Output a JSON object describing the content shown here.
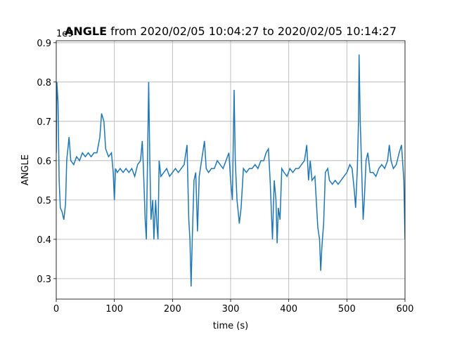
{
  "chart_data": {
    "type": "line",
    "title_bold": "ANGLE",
    "title": "from 2020/02/05 10:04:27 to 2020/02/05 10:14:27",
    "y_offset_label": "1e9",
    "x_label": "time (s)",
    "y_label": "ANGLE",
    "xlim": [
      0,
      600
    ],
    "ylim": [
      0.248,
      0.905
    ],
    "xticks": [
      0,
      100,
      200,
      300,
      400,
      500,
      600
    ],
    "yticks": [
      0.3,
      0.4,
      0.5,
      0.6,
      0.7,
      0.8,
      0.9
    ],
    "grid": true,
    "x": [
      0,
      1,
      3,
      5,
      7,
      10,
      13,
      16,
      18,
      20,
      22,
      25,
      30,
      35,
      40,
      45,
      50,
      55,
      60,
      65,
      70,
      75,
      78,
      82,
      85,
      90,
      95,
      98,
      100,
      102,
      105,
      110,
      115,
      120,
      125,
      130,
      135,
      140,
      145,
      148,
      150,
      153,
      155,
      157,
      159,
      161,
      163,
      166,
      168,
      171,
      173,
      175,
      177,
      180,
      185,
      190,
      195,
      200,
      205,
      210,
      215,
      220,
      225,
      228,
      230,
      232,
      234,
      237,
      240,
      243,
      246,
      250,
      255,
      258,
      262,
      267,
      272,
      277,
      282,
      287,
      292,
      297,
      300,
      303,
      306,
      308,
      311,
      315,
      318,
      322,
      327,
      332,
      337,
      342,
      347,
      352,
      357,
      361,
      365,
      368,
      372,
      375,
      378,
      380,
      382,
      385,
      388,
      392,
      397,
      402,
      407,
      412,
      417,
      422,
      427,
      431,
      434,
      437,
      440,
      445,
      450,
      453,
      455,
      457,
      460,
      463,
      467,
      470,
      475,
      480,
      485,
      490,
      495,
      500,
      505,
      509,
      513,
      515,
      518,
      520,
      521,
      523,
      526,
      528,
      530,
      533,
      536,
      540,
      545,
      550,
      555,
      560,
      565,
      570,
      573,
      576,
      580,
      585,
      590,
      594,
      598,
      600
    ],
    "series": [
      {
        "name": "ANGLE",
        "color": "#1f77b4",
        "values": [
          0.62,
          0.8,
          0.75,
          0.55,
          0.48,
          0.47,
          0.45,
          0.49,
          0.6,
          0.63,
          0.66,
          0.6,
          0.59,
          0.61,
          0.6,
          0.62,
          0.61,
          0.62,
          0.61,
          0.62,
          0.62,
          0.66,
          0.72,
          0.7,
          0.63,
          0.61,
          0.62,
          0.57,
          0.5,
          0.58,
          0.57,
          0.58,
          0.57,
          0.58,
          0.57,
          0.58,
          0.56,
          0.59,
          0.6,
          0.65,
          0.58,
          0.45,
          0.4,
          0.6,
          0.8,
          0.6,
          0.45,
          0.5,
          0.4,
          0.5,
          0.44,
          0.4,
          0.6,
          0.56,
          0.57,
          0.58,
          0.56,
          0.57,
          0.58,
          0.57,
          0.58,
          0.59,
          0.64,
          0.45,
          0.4,
          0.28,
          0.4,
          0.55,
          0.57,
          0.42,
          0.56,
          0.6,
          0.65,
          0.58,
          0.57,
          0.58,
          0.58,
          0.6,
          0.59,
          0.58,
          0.6,
          0.62,
          0.55,
          0.5,
          0.78,
          0.6,
          0.5,
          0.44,
          0.48,
          0.58,
          0.57,
          0.58,
          0.58,
          0.59,
          0.58,
          0.6,
          0.6,
          0.62,
          0.63,
          0.55,
          0.4,
          0.55,
          0.5,
          0.39,
          0.48,
          0.45,
          0.58,
          0.57,
          0.56,
          0.58,
          0.57,
          0.58,
          0.58,
          0.59,
          0.6,
          0.64,
          0.55,
          0.6,
          0.55,
          0.56,
          0.43,
          0.4,
          0.32,
          0.38,
          0.44,
          0.57,
          0.58,
          0.55,
          0.54,
          0.55,
          0.54,
          0.55,
          0.56,
          0.57,
          0.59,
          0.58,
          0.52,
          0.48,
          0.58,
          0.7,
          0.87,
          0.7,
          0.55,
          0.45,
          0.5,
          0.6,
          0.62,
          0.57,
          0.57,
          0.56,
          0.58,
          0.59,
          0.58,
          0.6,
          0.64,
          0.6,
          0.58,
          0.59,
          0.62,
          0.64,
          0.55,
          0.4
        ]
      }
    ]
  }
}
